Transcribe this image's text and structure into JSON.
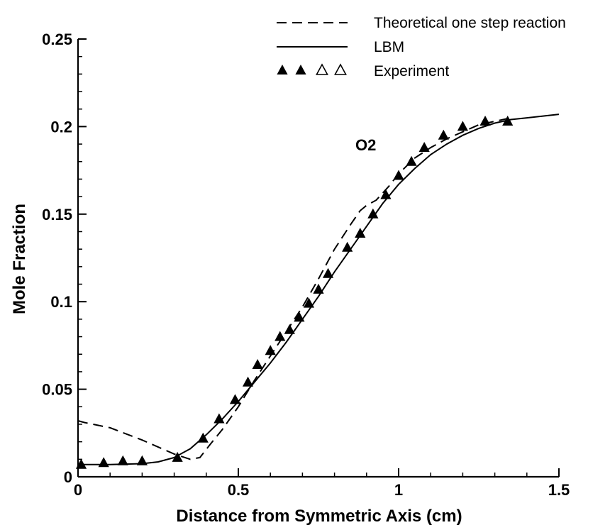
{
  "chart_data": {
    "type": "line",
    "title": "",
    "xlabel": "Distance from Symmetric Axis (cm)",
    "ylabel": "Mole Fraction",
    "xlim": [
      0,
      1.5
    ],
    "ylim": [
      0,
      0.25
    ],
    "x_ticks": [
      "0",
      "0.5",
      "1",
      "1.5"
    ],
    "y_ticks": [
      "0",
      "0.05",
      "0.1",
      "0.15",
      "0.2",
      "0.25"
    ],
    "grid": false,
    "legend_position": "top-right",
    "annotation": "O2",
    "series": [
      {
        "name": "Theoretical one step reaction",
        "style": "dashed",
        "x": [
          0,
          0.02,
          0.1,
          0.2,
          0.3,
          0.35,
          0.38,
          0.41,
          0.45,
          0.5,
          0.55,
          0.6,
          0.65,
          0.7,
          0.75,
          0.8,
          0.85,
          0.88,
          0.9,
          0.93,
          0.97,
          1.0,
          1.05,
          1.1,
          1.15,
          1.2,
          1.25,
          1.3,
          1.35
        ],
        "y": [
          0.032,
          0.031,
          0.028,
          0.021,
          0.013,
          0.01,
          0.011,
          0.018,
          0.027,
          0.04,
          0.055,
          0.069,
          0.083,
          0.097,
          0.113,
          0.13,
          0.144,
          0.152,
          0.155,
          0.158,
          0.166,
          0.173,
          0.182,
          0.188,
          0.193,
          0.197,
          0.201,
          0.203,
          0.205
        ]
      },
      {
        "name": "LBM",
        "style": "solid",
        "x": [
          0,
          0.1,
          0.2,
          0.25,
          0.3,
          0.35,
          0.4,
          0.45,
          0.5,
          0.55,
          0.6,
          0.65,
          0.7,
          0.75,
          0.8,
          0.85,
          0.9,
          0.95,
          1.0,
          1.05,
          1.1,
          1.15,
          1.2,
          1.25,
          1.3,
          1.35,
          1.4,
          1.45,
          1.5
        ],
        "y": [
          0.007,
          0.007,
          0.0075,
          0.0085,
          0.011,
          0.016,
          0.024,
          0.033,
          0.043,
          0.054,
          0.065,
          0.077,
          0.09,
          0.103,
          0.117,
          0.13,
          0.143,
          0.156,
          0.167,
          0.176,
          0.184,
          0.19,
          0.195,
          0.199,
          0.202,
          0.204,
          0.205,
          0.206,
          0.207
        ]
      },
      {
        "name": "Experiment",
        "style": "markers",
        "marker": "filled-triangle",
        "x": [
          0.01,
          0.08,
          0.14,
          0.2,
          0.31,
          0.39,
          0.44,
          0.49,
          0.53,
          0.56,
          0.6,
          0.63,
          0.66,
          0.69,
          0.72,
          0.75,
          0.78,
          0.84,
          0.88,
          0.92,
          0.96,
          1.0,
          1.04,
          1.08,
          1.14,
          1.2,
          1.27,
          1.34
        ],
        "y": [
          0.007,
          0.008,
          0.009,
          0.009,
          0.011,
          0.022,
          0.033,
          0.044,
          0.054,
          0.064,
          0.072,
          0.08,
          0.084,
          0.091,
          0.099,
          0.107,
          0.116,
          0.131,
          0.139,
          0.15,
          0.161,
          0.172,
          0.18,
          0.188,
          0.195,
          0.2,
          0.203,
          0.203
        ]
      }
    ]
  }
}
